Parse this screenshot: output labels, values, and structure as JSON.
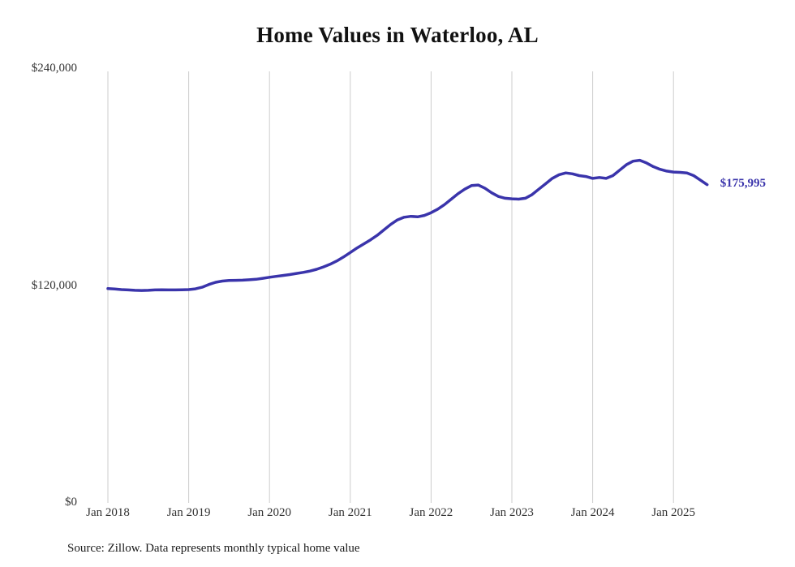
{
  "title": "Home Values in Waterloo, AL",
  "end_label": "$175,995",
  "source_note": "Source: Zillow. Data represents monthly typical home value",
  "colors": {
    "line": "#3a34ab",
    "end_label": "#3a34ab",
    "gridline": "#cccccc",
    "tick_text": "#333333",
    "title_text": "#111111"
  },
  "chart_data": {
    "type": "line",
    "title": "Home Values in Waterloo, AL",
    "xlabel": "",
    "ylabel": "",
    "ylim": [
      0,
      240000
    ],
    "grid": "vertical-only",
    "legend": "none",
    "x_start": "2018-01",
    "x_end": "2025-06",
    "x_interval": "monthly",
    "x_tick_labels": [
      "Jan 2018",
      "Jan 2019",
      "Jan 2020",
      "Jan 2021",
      "Jan 2022",
      "Jan 2023",
      "Jan 2024",
      "Jan 2025"
    ],
    "y_ticks": [
      {
        "value": 0,
        "label": "$0"
      },
      {
        "value": 120000,
        "label": "$120,000"
      },
      {
        "value": 240000,
        "label": "$240,000"
      }
    ],
    "final_value": 175995,
    "series": [
      {
        "name": "Typical home value",
        "values": [
          118500,
          118300,
          118000,
          117800,
          117600,
          117500,
          117600,
          117800,
          117900,
          117800,
          117800,
          117900,
          118000,
          118400,
          119300,
          120800,
          122000,
          122700,
          123000,
          123100,
          123200,
          123400,
          123700,
          124200,
          124800,
          125300,
          125800,
          126300,
          126900,
          127500,
          128200,
          129200,
          130500,
          132000,
          133800,
          136000,
          138500,
          141000,
          143200,
          145500,
          148000,
          151000,
          154000,
          156500,
          158000,
          158500,
          158200,
          159000,
          160500,
          162500,
          165000,
          168000,
          171000,
          173500,
          175500,
          175800,
          174000,
          171500,
          169500,
          168500,
          168200,
          168000,
          168500,
          170500,
          173500,
          176500,
          179500,
          181500,
          182500,
          182000,
          181000,
          180500,
          179500,
          180000,
          179500,
          181000,
          184000,
          187000,
          189000,
          189500,
          188000,
          186000,
          184500,
          183500,
          183000,
          182800,
          182500,
          181000,
          178500,
          175995
        ]
      }
    ]
  }
}
